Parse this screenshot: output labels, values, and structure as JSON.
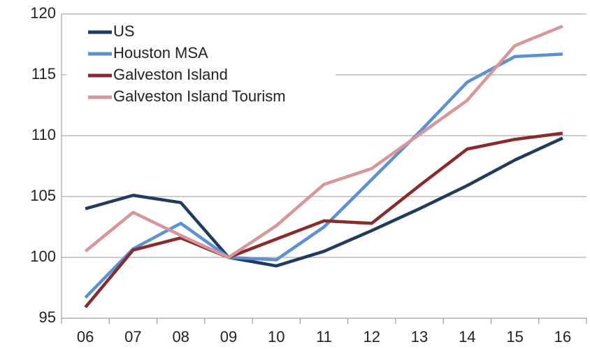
{
  "chart_data": {
    "type": "line",
    "categories": [
      "06",
      "07",
      "08",
      "09",
      "10",
      "11",
      "12",
      "13",
      "14",
      "15",
      "16"
    ],
    "series": [
      {
        "name": "US",
        "color": "#1f3b5e",
        "values": [
          104.0,
          105.1,
          104.5,
          100.0,
          99.3,
          100.5,
          102.2,
          104.0,
          105.9,
          108.0,
          109.8
        ]
      },
      {
        "name": "Houston MSA",
        "color": "#5b8fd6",
        "values": [
          96.7,
          100.7,
          102.8,
          100.0,
          99.8,
          102.5,
          106.4,
          110.3,
          114.4,
          116.5,
          116.7
        ]
      },
      {
        "name": "Galveston Island",
        "color": "#8b2a2a",
        "values": [
          95.9,
          100.6,
          101.6,
          100.0,
          101.5,
          103.0,
          102.8,
          105.9,
          108.9,
          109.7,
          110.2
        ]
      },
      {
        "name": "Galveston Island Tourism",
        "color": "#d9969a",
        "values": [
          100.5,
          103.7,
          101.8,
          100.0,
          102.6,
          106.0,
          107.3,
          110.1,
          112.9,
          117.4,
          119.0
        ]
      }
    ],
    "ylim": [
      95,
      120
    ],
    "yticks": [
      95,
      100,
      105,
      110,
      115,
      120
    ],
    "grid": true,
    "legend": "top-left"
  }
}
